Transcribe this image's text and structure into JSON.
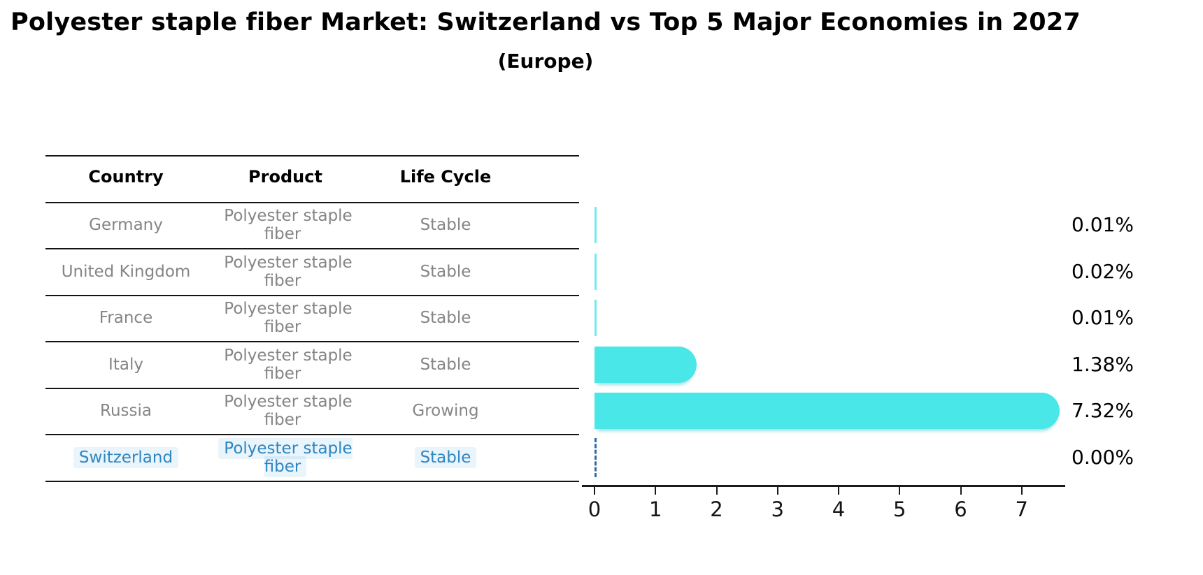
{
  "title": "Polyester staple fiber Market: Switzerland vs Top 5 Major Economies in 2027",
  "subtitle": "(Europe)",
  "table": {
    "headers": [
      "Country",
      "Product",
      "Life Cycle"
    ],
    "rows": [
      {
        "country": "Germany",
        "product": "Polyester staple fiber",
        "life_cycle": "Stable",
        "highlighted": false
      },
      {
        "country": "United Kingdom",
        "product": "Polyester staple fiber",
        "life_cycle": "Stable",
        "highlighted": false
      },
      {
        "country": "France",
        "product": "Polyester staple fiber",
        "life_cycle": "Stable",
        "highlighted": false
      },
      {
        "country": "Italy",
        "product": "Polyester staple fiber",
        "life_cycle": "Stable",
        "highlighted": false
      },
      {
        "country": "Russia",
        "product": "Polyester staple fiber",
        "life_cycle": "Growing",
        "highlighted": false
      },
      {
        "country": "Switzerland",
        "product": "Polyester staple fiber",
        "life_cycle": "Stable",
        "highlighted": true
      }
    ]
  },
  "chart_data": {
    "type": "bar",
    "orientation": "horizontal",
    "title": "Polyester staple fiber Market: Switzerland vs Top 5 Major Economies in 2027",
    "subtitle": "(Europe)",
    "categories": [
      "Germany",
      "United Kingdom",
      "France",
      "Italy",
      "Russia",
      "Switzerland"
    ],
    "values": [
      0.01,
      0.02,
      0.01,
      1.38,
      7.32,
      0.0
    ],
    "value_labels": [
      "0.01%",
      "0.02%",
      "0.01%",
      "1.38%",
      "7.32%",
      "0.00%"
    ],
    "xlabel": "",
    "ylabel": "",
    "xlim": [
      0,
      7.7
    ],
    "xticks": [
      0,
      1,
      2,
      3,
      4,
      5,
      6,
      7
    ],
    "grid": false,
    "legend": "none",
    "bar_color": "#4ae7e8",
    "zero_marker_color": "#2e6da4",
    "highlight_text_color": "#2e86c1",
    "row_text_color": "#858585"
  }
}
